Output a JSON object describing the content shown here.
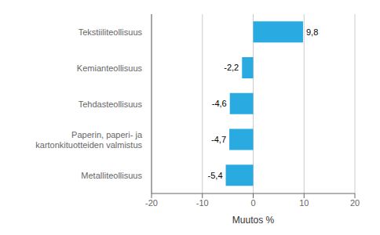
{
  "chart_data": {
    "type": "bar",
    "orientation": "horizontal",
    "categories": [
      "Metalliteollisuus",
      "Paperin, paperi- ja kartonkituotteiden valmistus",
      "Tehdasteollisuus",
      "Kemianteollisuus",
      "Tekstiiliteollisuus"
    ],
    "values": [
      -5.4,
      -4.7,
      -4.6,
      -2.2,
      9.8
    ],
    "value_labels": [
      "-5,4",
      "-4,7",
      "-4,6",
      "-2,2",
      "9,8"
    ],
    "color": "#29abe2",
    "xlim": [
      -20,
      20
    ],
    "xticks": [
      -20,
      -10,
      0,
      10,
      20
    ],
    "xlabel": "Muutos %",
    "grid": true,
    "data_labels": true
  }
}
